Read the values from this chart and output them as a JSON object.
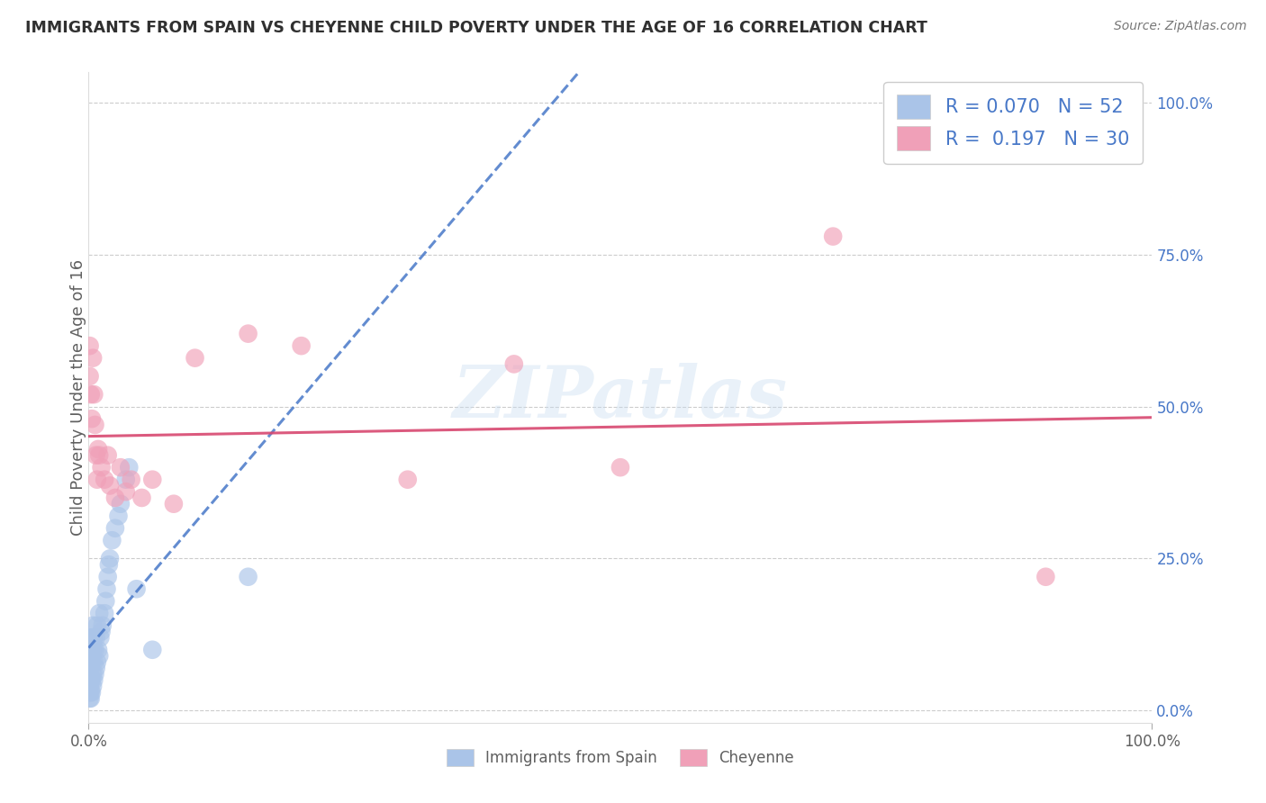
{
  "title": "IMMIGRANTS FROM SPAIN VS CHEYENNE CHILD POVERTY UNDER THE AGE OF 16 CORRELATION CHART",
  "source": "Source: ZipAtlas.com",
  "ylabel": "Child Poverty Under the Age of 16",
  "legend_labels": [
    "Immigrants from Spain",
    "Cheyenne"
  ],
  "legend_r": [
    0.07,
    0.197
  ],
  "legend_n": [
    52,
    30
  ],
  "blue_color": "#aac4e8",
  "pink_color": "#f0a0b8",
  "blue_line_color": "#4878c8",
  "pink_line_color": "#d84870",
  "watermark_text": "ZIPatlas",
  "blue_scatter_x": [
    0.001,
    0.001,
    0.001,
    0.001,
    0.001,
    0.001,
    0.001,
    0.001,
    0.002,
    0.002,
    0.002,
    0.002,
    0.002,
    0.002,
    0.003,
    0.003,
    0.003,
    0.003,
    0.004,
    0.004,
    0.004,
    0.004,
    0.005,
    0.005,
    0.005,
    0.006,
    0.006,
    0.007,
    0.007,
    0.008,
    0.008,
    0.009,
    0.01,
    0.01,
    0.011,
    0.012,
    0.013,
    0.015,
    0.016,
    0.017,
    0.018,
    0.019,
    0.02,
    0.022,
    0.025,
    0.028,
    0.03,
    0.035,
    0.038,
    0.045,
    0.06,
    0.15
  ],
  "blue_scatter_y": [
    0.02,
    0.03,
    0.04,
    0.05,
    0.06,
    0.07,
    0.08,
    0.1,
    0.02,
    0.03,
    0.05,
    0.08,
    0.1,
    0.12,
    0.03,
    0.05,
    0.08,
    0.12,
    0.04,
    0.06,
    0.1,
    0.14,
    0.05,
    0.08,
    0.12,
    0.06,
    0.1,
    0.07,
    0.12,
    0.08,
    0.14,
    0.1,
    0.09,
    0.16,
    0.12,
    0.13,
    0.14,
    0.16,
    0.18,
    0.2,
    0.22,
    0.24,
    0.25,
    0.28,
    0.3,
    0.32,
    0.34,
    0.38,
    0.4,
    0.2,
    0.1,
    0.22
  ],
  "pink_scatter_x": [
    0.001,
    0.001,
    0.002,
    0.003,
    0.004,
    0.005,
    0.006,
    0.007,
    0.008,
    0.009,
    0.01,
    0.012,
    0.015,
    0.018,
    0.02,
    0.025,
    0.03,
    0.035,
    0.04,
    0.05,
    0.06,
    0.08,
    0.1,
    0.15,
    0.2,
    0.3,
    0.4,
    0.5,
    0.7,
    0.9
  ],
  "pink_scatter_y": [
    0.6,
    0.55,
    0.52,
    0.48,
    0.58,
    0.52,
    0.47,
    0.42,
    0.38,
    0.43,
    0.42,
    0.4,
    0.38,
    0.42,
    0.37,
    0.35,
    0.4,
    0.36,
    0.38,
    0.35,
    0.38,
    0.34,
    0.58,
    0.62,
    0.6,
    0.38,
    0.57,
    0.4,
    0.78,
    0.22
  ],
  "xlim": [
    0.0,
    1.0
  ],
  "ylim": [
    -0.02,
    1.05
  ],
  "yticks": [
    0.0,
    0.25,
    0.5,
    0.75,
    1.0
  ],
  "ytick_labels": [
    "0.0%",
    "25.0%",
    "50.0%",
    "75.0%",
    "100.0%"
  ],
  "xtick_labels": [
    "0.0%",
    "100.0%"
  ],
  "grid_color": "#cccccc",
  "background_color": "#ffffff",
  "title_color": "#303030",
  "label_color": "#606060",
  "tick_color": "#4878c8"
}
